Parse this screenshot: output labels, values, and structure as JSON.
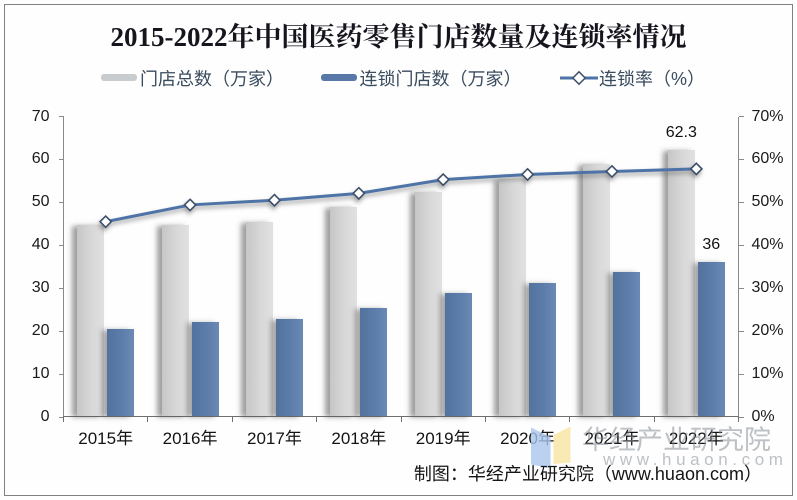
{
  "title": {
    "text": "2015-2022年中国医药零售门店数量及连锁率情况",
    "color": "#15151d"
  },
  "legend": {
    "items": [
      {
        "label": "门店总数（万家）",
        "marker": "thick-line",
        "color": "#c9cccf"
      },
      {
        "label": "连锁门店数（万家）",
        "marker": "thick-line",
        "color": "#5878a8"
      },
      {
        "label": "连锁率（%）",
        "marker": "line-diamond",
        "color": "#4d73a7"
      }
    ],
    "text_color": "#394b5e",
    "position": "top"
  },
  "chart_data": {
    "type": "combo-bar-line",
    "categories": [
      "2015年",
      "2016年",
      "2017年",
      "2018年",
      "2019年",
      "2020年",
      "2021年",
      "2022年"
    ],
    "series": [
      {
        "name": "门店总数（万家）",
        "type": "bar",
        "axis": "left",
        "values": [
          44.8,
          44.7,
          45.4,
          48.9,
          52.4,
          55.4,
          58.9,
          62.3
        ],
        "color": "#d3d3d3"
      },
      {
        "name": "连锁门店数（万家）",
        "type": "bar",
        "axis": "left",
        "values": [
          20.4,
          22.1,
          22.9,
          25.5,
          29.0,
          31.3,
          33.7,
          36.0
        ],
        "color": "#5878a8"
      },
      {
        "name": "连锁率（%）",
        "type": "line",
        "axis": "right",
        "marker": "diamond",
        "values": [
          45.5,
          49.4,
          50.5,
          52.1,
          55.3,
          56.5,
          57.2,
          57.8
        ],
        "color": "#4d73a7",
        "marker_fill": "#ffffff",
        "marker_stroke": "#3d4f6a"
      }
    ],
    "data_labels": [
      {
        "series": 0,
        "category_index": 7,
        "text": "62.3"
      },
      {
        "series": 1,
        "category_index": 7,
        "text": "36"
      }
    ],
    "left_axis": {
      "min": 0,
      "max": 70,
      "step": 10,
      "tick_labels": [
        "0",
        "10",
        "20",
        "30",
        "40",
        "50",
        "60",
        "70"
      ]
    },
    "right_axis": {
      "min": 0,
      "max": 70,
      "step": 10,
      "tick_labels": [
        "0%",
        "10%",
        "20%",
        "30%",
        "40%",
        "50%",
        "60%",
        "70%"
      ]
    },
    "gridlines": false,
    "plot_background": "#ffffff",
    "bar_gradient": {
      "total": [
        "#c6c6c6",
        "#d8d8d8",
        "#e1e1e1"
      ],
      "chain": [
        "#53739e",
        "#5c7caa",
        "#6b8ab4"
      ]
    }
  },
  "watermark": {
    "line1": "华经产业研究院",
    "line2": "www.huaon.com",
    "logo": {
      "page_left_color": "#a9c7ec",
      "page_right_color": "#f7e6a4"
    }
  },
  "credit": {
    "text": "制图：华经产业研究院（www.huaon.com）"
  }
}
